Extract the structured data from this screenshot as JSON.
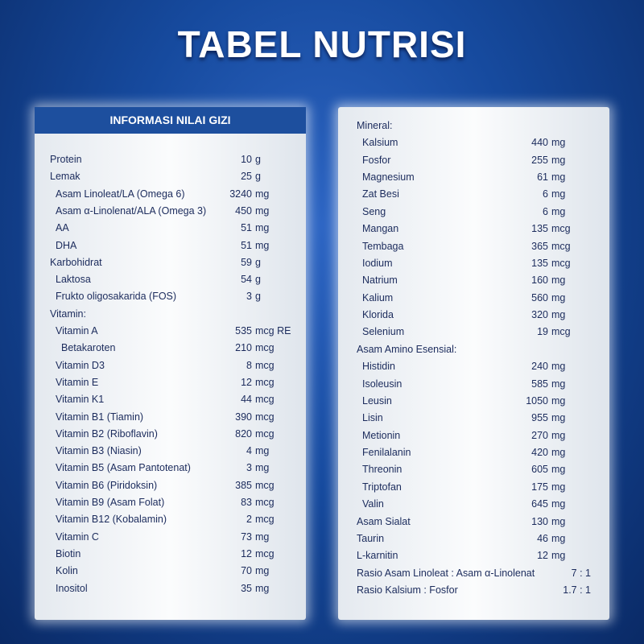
{
  "title": "TABEL NUTRISI",
  "left": {
    "header": "INFORMASI NILAI GIZI",
    "items": [
      {
        "name": "Protein",
        "amount": "10",
        "unit": "g"
      },
      {
        "name": "Lemak",
        "amount": "25",
        "unit": "g",
        "items": [
          {
            "name": "Asam Linoleat/LA (Omega 6)",
            "amount": "3240",
            "unit": "mg"
          },
          {
            "name": "Asam α-Linolenat/ALA (Omega 3)",
            "amount": "450",
            "unit": "mg"
          },
          {
            "name": "AA",
            "amount": "51",
            "unit": "mg"
          },
          {
            "name": "DHA",
            "amount": "51",
            "unit": "mg"
          }
        ]
      },
      {
        "name": "Karbohidrat",
        "amount": "59",
        "unit": "g",
        "items": [
          {
            "name": "Laktosa",
            "amount": "54",
            "unit": "g"
          },
          {
            "name": "Frukto oligosakarida (FOS)",
            "amount": "3",
            "unit": "g"
          }
        ]
      },
      {
        "name": "Vitamin:",
        "items": [
          {
            "name": "Vitamin A",
            "amount": "535",
            "unit": "mcg RE",
            "items": [
              {
                "name": "Betakaroten",
                "amount": "210",
                "unit": "mcg"
              }
            ]
          },
          {
            "name": "Vitamin D3",
            "amount": "8",
            "unit": "mcg"
          },
          {
            "name": "Vitamin E",
            "amount": "12",
            "unit": "mcg"
          },
          {
            "name": "Vitamin K1",
            "amount": "44",
            "unit": "mcg"
          },
          {
            "name": "Vitamin B1 (Tiamin)",
            "amount": "390",
            "unit": "mcg"
          },
          {
            "name": "Vitamin B2 (Riboflavin)",
            "amount": "820",
            "unit": "mcg"
          },
          {
            "name": "Vitamin B3 (Niasin)",
            "amount": "4",
            "unit": "mg"
          },
          {
            "name": "Vitamin B5 (Asam Pantotenat)",
            "amount": "3",
            "unit": "mg"
          },
          {
            "name": "Vitamin B6 (Piridoksin)",
            "amount": "385",
            "unit": "mcg"
          },
          {
            "name": "Vitamin B9 (Asam Folat)",
            "amount": "83",
            "unit": "mcg"
          },
          {
            "name": "Vitamin B12 (Kobalamin)",
            "amount": "2",
            "unit": "mcg"
          },
          {
            "name": "Vitamin C",
            "amount": "73",
            "unit": "mg"
          },
          {
            "name": "Biotin",
            "amount": "12",
            "unit": "mcg"
          },
          {
            "name": "Kolin",
            "amount": "70",
            "unit": "mg"
          },
          {
            "name": "Inositol",
            "amount": "35",
            "unit": "mg"
          }
        ]
      }
    ]
  },
  "right": {
    "items": [
      {
        "name": "Mineral:",
        "items": [
          {
            "name": "Kalsium",
            "amount": "440",
            "unit": "mg"
          },
          {
            "name": "Fosfor",
            "amount": "255",
            "unit": "mg"
          },
          {
            "name": "Magnesium",
            "amount": "61",
            "unit": "mg"
          },
          {
            "name": "Zat Besi",
            "amount": "6",
            "unit": "mg"
          },
          {
            "name": "Seng",
            "amount": "6",
            "unit": "mg"
          },
          {
            "name": "Mangan",
            "amount": "135",
            "unit": "mcg"
          },
          {
            "name": "Tembaga",
            "amount": "365",
            "unit": "mcg"
          },
          {
            "name": "Iodium",
            "amount": "135",
            "unit": "mcg"
          },
          {
            "name": "Natrium",
            "amount": "160",
            "unit": "mg"
          },
          {
            "name": "Kalium",
            "amount": "560",
            "unit": "mg"
          },
          {
            "name": "Klorida",
            "amount": "320",
            "unit": "mg"
          },
          {
            "name": "Selenium",
            "amount": "19",
            "unit": "mcg"
          }
        ]
      },
      {
        "name": "Asam Amino Esensial:",
        "items": [
          {
            "name": "Histidin",
            "amount": "240",
            "unit": "mg"
          },
          {
            "name": "Isoleusin",
            "amount": "585",
            "unit": "mg"
          },
          {
            "name": "Leusin",
            "amount": "1050",
            "unit": "mg"
          },
          {
            "name": "Lisin",
            "amount": "955",
            "unit": "mg"
          },
          {
            "name": "Metionin",
            "amount": "270",
            "unit": "mg"
          },
          {
            "name": "Fenilalanin",
            "amount": "420",
            "unit": "mg"
          },
          {
            "name": "Threonin",
            "amount": "605",
            "unit": "mg"
          },
          {
            "name": "Triptofan",
            "amount": "175",
            "unit": "mg"
          },
          {
            "name": "Valin",
            "amount": "645",
            "unit": "mg"
          }
        ]
      },
      {
        "name": "Asam Sialat",
        "amount": "130",
        "unit": "mg"
      },
      {
        "name": "Taurin",
        "amount": "46",
        "unit": "mg"
      },
      {
        "name": "L-karnitin",
        "amount": "12",
        "unit": "mg"
      },
      {
        "name": "Rasio Asam Linoleat : Asam α-Linolenat",
        "amount": "7 : 1"
      },
      {
        "name": "Rasio Kalsium : Fosfor",
        "amount": "1.7 : 1"
      }
    ]
  }
}
